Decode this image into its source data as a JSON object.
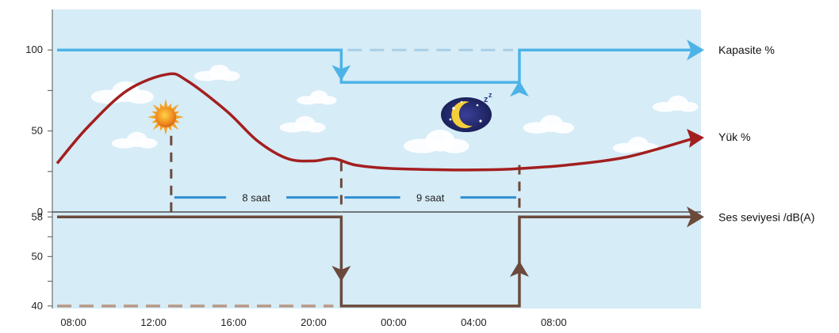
{
  "chart_data": {
    "type": "line",
    "title": "",
    "xlabel": "",
    "x_ticks": [
      "08:00",
      "12:00",
      "16:00",
      "20:00",
      "00:00",
      "04:00",
      "08:00"
    ],
    "upper_panel": {
      "y_ticks": [
        "100",
        "50",
        "0"
      ],
      "ylim": [
        0,
        125
      ],
      "series": [
        {
          "name": "Kapasite %",
          "color": "#4db3e6",
          "points": [
            [
              7.5,
              100
            ],
            [
              21.7,
              100
            ],
            [
              21.7,
              80
            ],
            [
              30.6,
              80
            ],
            [
              30.6,
              100
            ],
            [
              39.2,
              100
            ]
          ]
        },
        {
          "name": "Yük %",
          "color": "#a31f1f",
          "points": [
            [
              7.5,
              30
            ],
            [
              9,
              52
            ],
            [
              11,
              75
            ],
            [
              13,
              85
            ],
            [
              14,
              81
            ],
            [
              16,
              62
            ],
            [
              17.5,
              44
            ],
            [
              19,
              33
            ],
            [
              20.3,
              31.5
            ],
            [
              21.3,
              33
            ],
            [
              22.4,
              29
            ],
            [
              24,
              27
            ],
            [
              27,
              26
            ],
            [
              29.5,
              26.2
            ],
            [
              30.6,
              26.8
            ],
            [
              33,
              29
            ],
            [
              36,
              34
            ],
            [
              39.2,
              45
            ]
          ]
        }
      ],
      "bars": [
        {
          "label": "8 saat",
          "from": 13.2,
          "to": 21.7,
          "y": 9
        },
        {
          "label": "9 saat",
          "from": 21.7,
          "to": 30.6,
          "y": 9
        }
      ],
      "reference_lines": [
        {
          "x": 13.2,
          "from_y": 0,
          "to_y": 47
        },
        {
          "x": 21.7,
          "from_y": 0,
          "to_y": 31
        },
        {
          "x": 30.6,
          "from_y": 0,
          "to_y": 29
        }
      ],
      "dashed_segment": {
        "from": 21.7,
        "to": 30.6,
        "y": 100
      }
    },
    "lower_panel": {
      "y_ticks": [
        "58",
        "50",
        "40"
      ],
      "ylim": [
        39.5,
        59
      ],
      "series": [
        {
          "name": "Ses seviyesi /dB(A)",
          "color": "#6b4a3c",
          "points": [
            [
              7.5,
              58
            ],
            [
              21.7,
              58
            ],
            [
              21.7,
              40
            ],
            [
              30.6,
              40
            ],
            [
              30.6,
              58
            ],
            [
              39.2,
              58
            ]
          ]
        }
      ],
      "dashed_segment": {
        "from": 7.5,
        "to": 21.7,
        "y": 40
      }
    },
    "xlim": [
      7.5,
      39.2
    ]
  }
}
